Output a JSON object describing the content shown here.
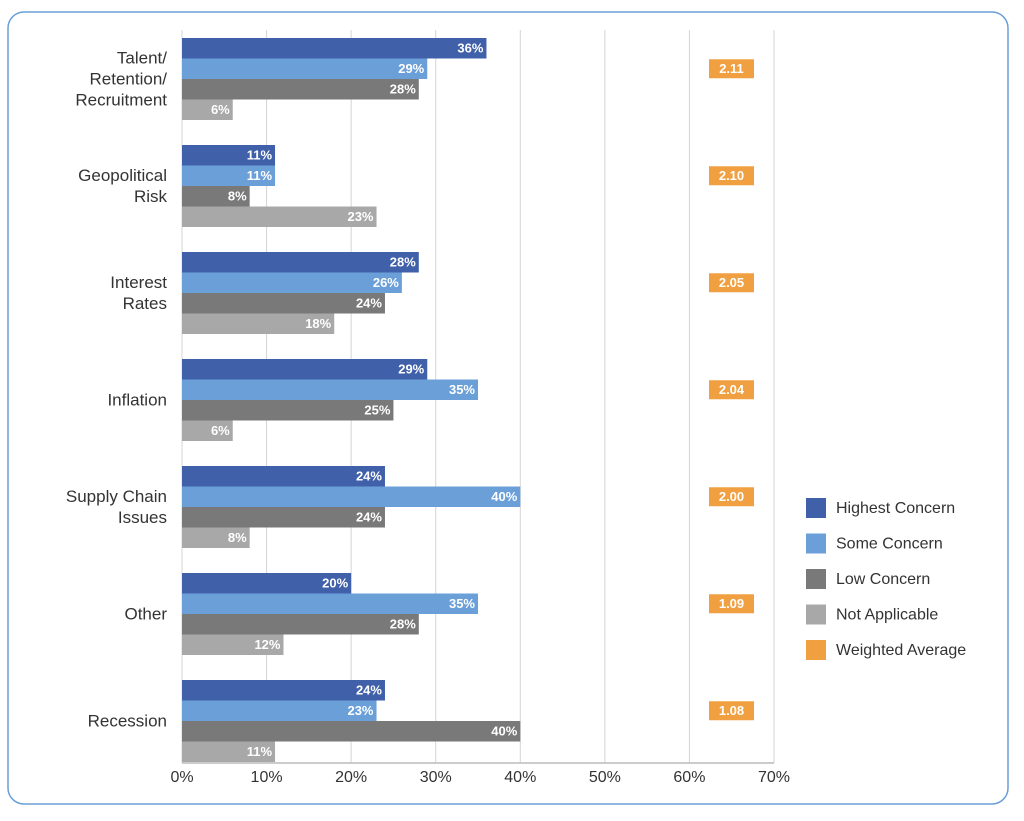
{
  "chart_data": {
    "type": "bar",
    "orientation": "horizontal",
    "categories": [
      "Talent/\nRetention/\nRecruitment",
      "Geopolitical\nRisk",
      "Interest\nRates",
      "Inflation",
      "Supply Chain\nIssues",
      "Other",
      "Recession"
    ],
    "series": [
      {
        "name": "Highest Concern",
        "color": "#4060aa",
        "values": [
          36,
          11,
          28,
          29,
          24,
          20,
          24
        ],
        "value_labels": [
          "36%",
          "11%",
          "28%",
          "29%",
          "24%",
          "20%",
          "24%"
        ]
      },
      {
        "name": "Some Concern",
        "color": "#6b9fd8",
        "values": [
          29,
          11,
          26,
          35,
          40,
          35,
          23
        ],
        "value_labels": [
          "29%",
          "11%",
          "26%",
          "35%",
          "40%",
          "35%",
          "23%"
        ]
      },
      {
        "name": "Low Concern",
        "color": "#797979",
        "values": [
          28,
          8,
          24,
          25,
          24,
          28,
          40
        ],
        "value_labels": [
          "28%",
          "8%",
          "24%",
          "25%",
          "24%",
          "28%",
          "40%"
        ]
      },
      {
        "name": "Not Applicable",
        "color": "#a8a8a8",
        "values": [
          6,
          23,
          18,
          6,
          8,
          12,
          11
        ],
        "value_labels": [
          "6%",
          "23%",
          "18%",
          "6%",
          "8%",
          "12%",
          "11%"
        ]
      }
    ],
    "weighted_average": {
      "name": "Weighted Average",
      "color": "#f0a040",
      "values": [
        2.11,
        2.1,
        2.05,
        2.04,
        2.0,
        1.09,
        1.08
      ],
      "value_labels": [
        "2.11",
        "2.10",
        "2.05",
        "2.04",
        "2.00",
        "1.09",
        "1.08"
      ]
    },
    "xlim": [
      0,
      70
    ],
    "xticks": [
      {
        "value": 0,
        "label": "0%"
      },
      {
        "value": 10,
        "label": "10%"
      },
      {
        "value": 20,
        "label": "20%"
      },
      {
        "value": 30,
        "label": "30%"
      },
      {
        "value": 40,
        "label": "40%"
      },
      {
        "value": 50,
        "label": "50%"
      },
      {
        "value": 60,
        "label": "60%"
      },
      {
        "value": 70,
        "label": "70%"
      }
    ],
    "grid": true,
    "legend": "right"
  }
}
